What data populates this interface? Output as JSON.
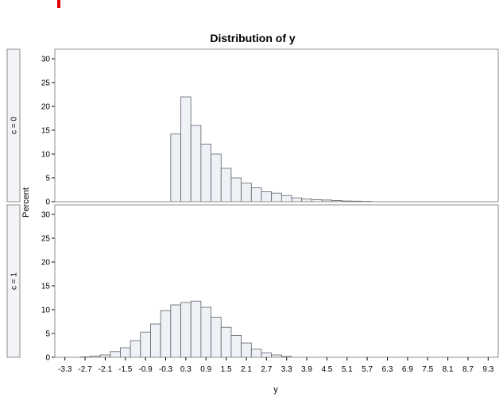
{
  "chart_data": {
    "type": "bar",
    "subtype": "histogram-panel",
    "title": "Distribution of y",
    "xlabel": "y",
    "ylabel": "Percent",
    "ylim": [
      0,
      31
    ],
    "yticks": [
      0,
      5,
      10,
      15,
      20,
      25,
      30
    ],
    "xlim": [
      -3.6,
      9.6
    ],
    "bin_width": 0.3,
    "xticks": [
      "-3.3",
      "-2.7",
      "-2.1",
      "-1.5",
      "-0.9",
      "-0.3",
      "0.3",
      "0.9",
      "1.5",
      "2.1",
      "2.7",
      "3.3",
      "3.9",
      "4.5",
      "5.1",
      "5.7",
      "6.3",
      "6.9",
      "7.5",
      "8.1",
      "8.7",
      "9.3"
    ],
    "colors": {
      "bar_fill": "#eef1f6",
      "bar_stroke": "#5e6168",
      "frame": "#8c8c8c",
      "strip": "#f3f4f7",
      "marker": "#e00000"
    },
    "panels": [
      {
        "label": "c = 0",
        "bins": [
          {
            "x": 0.0,
            "y": 14.2
          },
          {
            "x": 0.3,
            "y": 22.0
          },
          {
            "x": 0.6,
            "y": 16.0
          },
          {
            "x": 0.9,
            "y": 12.1
          },
          {
            "x": 1.2,
            "y": 10.0
          },
          {
            "x": 1.5,
            "y": 7.0
          },
          {
            "x": 1.8,
            "y": 5.0
          },
          {
            "x": 2.1,
            "y": 3.9
          },
          {
            "x": 2.4,
            "y": 2.9
          },
          {
            "x": 2.7,
            "y": 2.1
          },
          {
            "x": 3.0,
            "y": 1.8
          },
          {
            "x": 3.3,
            "y": 1.3
          },
          {
            "x": 3.6,
            "y": 0.8
          },
          {
            "x": 3.9,
            "y": 0.55
          },
          {
            "x": 4.2,
            "y": 0.4
          },
          {
            "x": 4.5,
            "y": 0.35
          },
          {
            "x": 4.8,
            "y": 0.25
          },
          {
            "x": 5.1,
            "y": 0.15
          },
          {
            "x": 5.4,
            "y": 0.12
          },
          {
            "x": 5.7,
            "y": 0.08
          }
        ]
      },
      {
        "label": "c = 1",
        "bins": [
          {
            "x": -2.7,
            "y": 0.1
          },
          {
            "x": -2.4,
            "y": 0.25
          },
          {
            "x": -2.1,
            "y": 0.5
          },
          {
            "x": -1.8,
            "y": 1.2
          },
          {
            "x": -1.5,
            "y": 2.0
          },
          {
            "x": -1.2,
            "y": 3.5
          },
          {
            "x": -0.9,
            "y": 5.3
          },
          {
            "x": -0.6,
            "y": 7.0
          },
          {
            "x": -0.3,
            "y": 9.8
          },
          {
            "x": 0.0,
            "y": 11.0
          },
          {
            "x": 0.3,
            "y": 11.5
          },
          {
            "x": 0.6,
            "y": 11.8
          },
          {
            "x": 0.9,
            "y": 10.5
          },
          {
            "x": 1.2,
            "y": 8.4
          },
          {
            "x": 1.5,
            "y": 6.3
          },
          {
            "x": 1.8,
            "y": 4.6
          },
          {
            "x": 2.1,
            "y": 3.0
          },
          {
            "x": 2.4,
            "y": 1.7
          },
          {
            "x": 2.7,
            "y": 0.9
          },
          {
            "x": 3.0,
            "y": 0.5
          },
          {
            "x": 3.3,
            "y": 0.2
          }
        ]
      }
    ]
  }
}
